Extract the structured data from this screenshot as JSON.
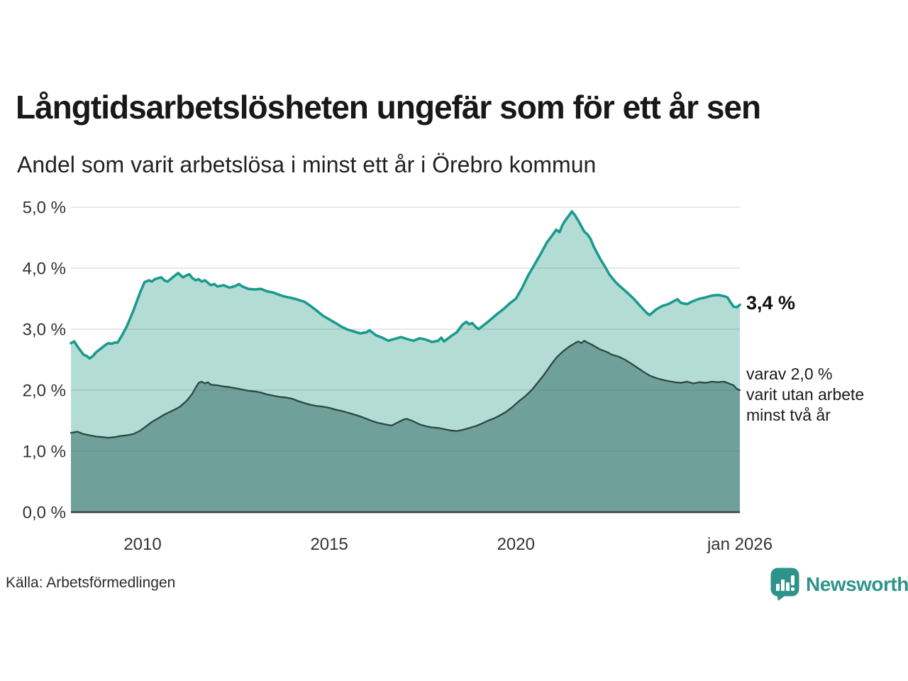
{
  "header": {
    "title": "Långtidsarbetslösheten ungefär som för ett år sen",
    "subtitle": "Andel som varit arbetslösa i minst ett år i Örebro kommun"
  },
  "chart_data": {
    "type": "area",
    "grid": true,
    "x_axis": {
      "range": [
        2008.08,
        2026.0
      ],
      "ticks": [
        {
          "v": 2010,
          "label": "2010"
        },
        {
          "v": 2015,
          "label": "2015"
        },
        {
          "v": 2020,
          "label": "2020"
        },
        {
          "v": 2026,
          "label": "jan 2026"
        }
      ]
    },
    "y_axis": {
      "range": [
        0,
        5
      ],
      "ticks": [
        {
          "v": 0,
          "label": "0,0 %"
        },
        {
          "v": 1,
          "label": "1,0 %"
        },
        {
          "v": 2,
          "label": "2,0 %"
        },
        {
          "v": 3,
          "label": "3,0 %"
        },
        {
          "v": 4,
          "label": "4,0 %"
        },
        {
          "v": 5,
          "label": "5,0 %"
        }
      ]
    },
    "colors": {
      "total_line": "#1a9a8e",
      "total_fill": "#b3dcd5",
      "two_year_line": "#2e4742",
      "two_year_fill": "#6fa09a",
      "gridline": "rgba(110,110,110,0.22)",
      "axis_line": "#3c3c3c",
      "tick_text": "#333333"
    },
    "series": [
      {
        "id": "total",
        "points": [
          [
            2008.08,
            2.77
          ],
          [
            2008.17,
            2.8
          ],
          [
            2008.25,
            2.72
          ],
          [
            2008.42,
            2.58
          ],
          [
            2008.5,
            2.56
          ],
          [
            2008.58,
            2.52
          ],
          [
            2008.67,
            2.56
          ],
          [
            2008.75,
            2.62
          ],
          [
            2008.92,
            2.7
          ],
          [
            2009.0,
            2.74
          ],
          [
            2009.08,
            2.77
          ],
          [
            2009.17,
            2.76
          ],
          [
            2009.25,
            2.78
          ],
          [
            2009.33,
            2.78
          ],
          [
            2009.45,
            2.9
          ],
          [
            2009.58,
            3.05
          ],
          [
            2009.75,
            3.3
          ],
          [
            2009.92,
            3.58
          ],
          [
            2010.05,
            3.77
          ],
          [
            2010.17,
            3.8
          ],
          [
            2010.25,
            3.78
          ],
          [
            2010.33,
            3.82
          ],
          [
            2010.5,
            3.85
          ],
          [
            2010.58,
            3.8
          ],
          [
            2010.67,
            3.78
          ],
          [
            2010.75,
            3.82
          ],
          [
            2010.83,
            3.86
          ],
          [
            2010.95,
            3.92
          ],
          [
            2011.08,
            3.85
          ],
          [
            2011.17,
            3.88
          ],
          [
            2011.25,
            3.9
          ],
          [
            2011.33,
            3.84
          ],
          [
            2011.42,
            3.8
          ],
          [
            2011.5,
            3.82
          ],
          [
            2011.58,
            3.78
          ],
          [
            2011.67,
            3.8
          ],
          [
            2011.75,
            3.76
          ],
          [
            2011.83,
            3.72
          ],
          [
            2011.92,
            3.74
          ],
          [
            2012.0,
            3.7
          ],
          [
            2012.17,
            3.72
          ],
          [
            2012.33,
            3.68
          ],
          [
            2012.5,
            3.71
          ],
          [
            2012.58,
            3.74
          ],
          [
            2012.67,
            3.7
          ],
          [
            2012.83,
            3.66
          ],
          [
            2013.0,
            3.65
          ],
          [
            2013.17,
            3.66
          ],
          [
            2013.33,
            3.62
          ],
          [
            2013.5,
            3.6
          ],
          [
            2013.67,
            3.56
          ],
          [
            2013.83,
            3.53
          ],
          [
            2014.0,
            3.51
          ],
          [
            2014.17,
            3.48
          ],
          [
            2014.33,
            3.45
          ],
          [
            2014.5,
            3.38
          ],
          [
            2014.67,
            3.3
          ],
          [
            2014.83,
            3.22
          ],
          [
            2015.0,
            3.16
          ],
          [
            2015.17,
            3.1
          ],
          [
            2015.33,
            3.04
          ],
          [
            2015.5,
            2.99
          ],
          [
            2015.67,
            2.96
          ],
          [
            2015.83,
            2.93
          ],
          [
            2016.0,
            2.95
          ],
          [
            2016.08,
            2.98
          ],
          [
            2016.25,
            2.9
          ],
          [
            2016.42,
            2.86
          ],
          [
            2016.58,
            2.81
          ],
          [
            2016.75,
            2.84
          ],
          [
            2016.92,
            2.87
          ],
          [
            2017.08,
            2.84
          ],
          [
            2017.25,
            2.81
          ],
          [
            2017.42,
            2.85
          ],
          [
            2017.58,
            2.83
          ],
          [
            2017.75,
            2.79
          ],
          [
            2017.92,
            2.81
          ],
          [
            2018.0,
            2.86
          ],
          [
            2018.08,
            2.8
          ],
          [
            2018.25,
            2.88
          ],
          [
            2018.42,
            2.95
          ],
          [
            2018.5,
            3.02
          ],
          [
            2018.58,
            3.08
          ],
          [
            2018.67,
            3.12
          ],
          [
            2018.75,
            3.08
          ],
          [
            2018.83,
            3.1
          ],
          [
            2018.92,
            3.04
          ],
          [
            2019.0,
            3.0
          ],
          [
            2019.17,
            3.08
          ],
          [
            2019.33,
            3.16
          ],
          [
            2019.5,
            3.25
          ],
          [
            2019.67,
            3.33
          ],
          [
            2019.83,
            3.42
          ],
          [
            2020.0,
            3.5
          ],
          [
            2020.17,
            3.68
          ],
          [
            2020.33,
            3.88
          ],
          [
            2020.5,
            4.06
          ],
          [
            2020.67,
            4.24
          ],
          [
            2020.83,
            4.42
          ],
          [
            2021.0,
            4.56
          ],
          [
            2021.08,
            4.63
          ],
          [
            2021.17,
            4.59
          ],
          [
            2021.25,
            4.71
          ],
          [
            2021.33,
            4.79
          ],
          [
            2021.42,
            4.86
          ],
          [
            2021.5,
            4.93
          ],
          [
            2021.58,
            4.87
          ],
          [
            2021.67,
            4.78
          ],
          [
            2021.83,
            4.6
          ],
          [
            2021.92,
            4.55
          ],
          [
            2022.0,
            4.48
          ],
          [
            2022.08,
            4.36
          ],
          [
            2022.25,
            4.16
          ],
          [
            2022.42,
            3.99
          ],
          [
            2022.5,
            3.9
          ],
          [
            2022.67,
            3.77
          ],
          [
            2022.83,
            3.68
          ],
          [
            2023.0,
            3.59
          ],
          [
            2023.17,
            3.49
          ],
          [
            2023.33,
            3.38
          ],
          [
            2023.5,
            3.27
          ],
          [
            2023.58,
            3.23
          ],
          [
            2023.75,
            3.32
          ],
          [
            2023.92,
            3.38
          ],
          [
            2024.08,
            3.41
          ],
          [
            2024.17,
            3.44
          ],
          [
            2024.33,
            3.49
          ],
          [
            2024.42,
            3.43
          ],
          [
            2024.58,
            3.41
          ],
          [
            2024.75,
            3.46
          ],
          [
            2024.92,
            3.5
          ],
          [
            2025.08,
            3.52
          ],
          [
            2025.25,
            3.55
          ],
          [
            2025.42,
            3.56
          ],
          [
            2025.58,
            3.54
          ],
          [
            2025.67,
            3.52
          ],
          [
            2025.75,
            3.44
          ],
          [
            2025.83,
            3.37
          ],
          [
            2025.92,
            3.36
          ],
          [
            2026.0,
            3.4
          ]
        ]
      },
      {
        "id": "two_year",
        "points": [
          [
            2008.08,
            1.3
          ],
          [
            2008.25,
            1.32
          ],
          [
            2008.42,
            1.28
          ],
          [
            2008.58,
            1.26
          ],
          [
            2008.75,
            1.24
          ],
          [
            2008.92,
            1.23
          ],
          [
            2009.08,
            1.22
          ],
          [
            2009.25,
            1.23
          ],
          [
            2009.42,
            1.25
          ],
          [
            2009.58,
            1.26
          ],
          [
            2009.75,
            1.28
          ],
          [
            2009.92,
            1.33
          ],
          [
            2010.08,
            1.4
          ],
          [
            2010.25,
            1.48
          ],
          [
            2010.42,
            1.54
          ],
          [
            2010.58,
            1.6
          ],
          [
            2010.75,
            1.65
          ],
          [
            2010.92,
            1.7
          ],
          [
            2011.0,
            1.73
          ],
          [
            2011.17,
            1.82
          ],
          [
            2011.33,
            1.94
          ],
          [
            2011.42,
            2.04
          ],
          [
            2011.5,
            2.12
          ],
          [
            2011.58,
            2.14
          ],
          [
            2011.67,
            2.11
          ],
          [
            2011.75,
            2.13
          ],
          [
            2011.83,
            2.09
          ],
          [
            2012.0,
            2.08
          ],
          [
            2012.17,
            2.06
          ],
          [
            2012.33,
            2.05
          ],
          [
            2012.5,
            2.03
          ],
          [
            2012.67,
            2.01
          ],
          [
            2012.83,
            1.99
          ],
          [
            2013.0,
            1.98
          ],
          [
            2013.17,
            1.96
          ],
          [
            2013.33,
            1.93
          ],
          [
            2013.5,
            1.91
          ],
          [
            2013.67,
            1.89
          ],
          [
            2013.83,
            1.88
          ],
          [
            2014.0,
            1.86
          ],
          [
            2014.17,
            1.82
          ],
          [
            2014.33,
            1.79
          ],
          [
            2014.5,
            1.76
          ],
          [
            2014.67,
            1.74
          ],
          [
            2014.83,
            1.73
          ],
          [
            2015.0,
            1.71
          ],
          [
            2015.17,
            1.68
          ],
          [
            2015.33,
            1.66
          ],
          [
            2015.5,
            1.63
          ],
          [
            2015.67,
            1.6
          ],
          [
            2015.83,
            1.57
          ],
          [
            2016.0,
            1.53
          ],
          [
            2016.17,
            1.49
          ],
          [
            2016.33,
            1.46
          ],
          [
            2016.5,
            1.44
          ],
          [
            2016.67,
            1.42
          ],
          [
            2016.83,
            1.47
          ],
          [
            2017.0,
            1.52
          ],
          [
            2017.08,
            1.53
          ],
          [
            2017.25,
            1.49
          ],
          [
            2017.42,
            1.44
          ],
          [
            2017.58,
            1.41
          ],
          [
            2017.75,
            1.39
          ],
          [
            2017.92,
            1.38
          ],
          [
            2018.08,
            1.36
          ],
          [
            2018.25,
            1.34
          ],
          [
            2018.42,
            1.33
          ],
          [
            2018.58,
            1.35
          ],
          [
            2018.75,
            1.38
          ],
          [
            2018.92,
            1.41
          ],
          [
            2019.08,
            1.45
          ],
          [
            2019.25,
            1.5
          ],
          [
            2019.42,
            1.54
          ],
          [
            2019.58,
            1.59
          ],
          [
            2019.75,
            1.65
          ],
          [
            2019.92,
            1.73
          ],
          [
            2020.08,
            1.82
          ],
          [
            2020.25,
            1.9
          ],
          [
            2020.42,
            2.0
          ],
          [
            2020.58,
            2.12
          ],
          [
            2020.75,
            2.25
          ],
          [
            2020.92,
            2.4
          ],
          [
            2021.08,
            2.53
          ],
          [
            2021.25,
            2.63
          ],
          [
            2021.42,
            2.71
          ],
          [
            2021.58,
            2.77
          ],
          [
            2021.67,
            2.8
          ],
          [
            2021.75,
            2.77
          ],
          [
            2021.83,
            2.81
          ],
          [
            2021.92,
            2.78
          ],
          [
            2022.08,
            2.73
          ],
          [
            2022.25,
            2.67
          ],
          [
            2022.42,
            2.63
          ],
          [
            2022.58,
            2.58
          ],
          [
            2022.75,
            2.55
          ],
          [
            2022.92,
            2.5
          ],
          [
            2023.08,
            2.44
          ],
          [
            2023.25,
            2.37
          ],
          [
            2023.42,
            2.3
          ],
          [
            2023.58,
            2.24
          ],
          [
            2023.75,
            2.2
          ],
          [
            2023.92,
            2.17
          ],
          [
            2024.08,
            2.15
          ],
          [
            2024.25,
            2.13
          ],
          [
            2024.42,
            2.12
          ],
          [
            2024.58,
            2.14
          ],
          [
            2024.75,
            2.11
          ],
          [
            2024.92,
            2.13
          ],
          [
            2025.08,
            2.12
          ],
          [
            2025.25,
            2.14
          ],
          [
            2025.42,
            2.13
          ],
          [
            2025.58,
            2.14
          ],
          [
            2025.75,
            2.1
          ],
          [
            2025.83,
            2.08
          ],
          [
            2025.92,
            2.02
          ],
          [
            2026.0,
            2.0
          ]
        ]
      }
    ],
    "annotations": {
      "latest_total": "3,4 %",
      "two_year_note": "varav 2,0 %\nvarit utan arbete\nminst två år"
    }
  },
  "footer": {
    "source": "Källa: Arbetsförmedlingen",
    "brand": "Newsworthy"
  }
}
